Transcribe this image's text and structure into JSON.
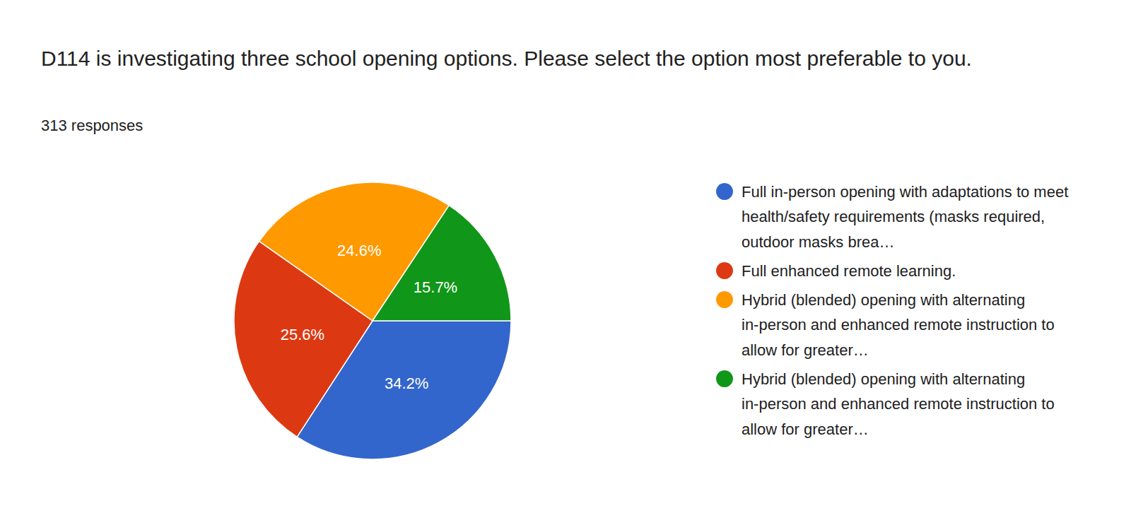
{
  "chart_data": {
    "type": "pie",
    "title": "D114 is investigating three school opening options. Please select the option most preferable to you.",
    "subtitle": "313 responses",
    "categories": [
      "Full in-person opening with adaptations to meet health/safety requirements (masks required, outdoor masks brea…",
      "Full enhanced remote learning.",
      "Hybrid (blended) opening with alternating in-person and enhanced remote instruction to allow for greater…",
      "Hybrid (blended) opening with alternating in-person and enhanced remote instruction to allow for greater…"
    ],
    "values": [
      34.2,
      25.6,
      24.6,
      15.7
    ],
    "value_labels": [
      "34.2%",
      "25.6%",
      "24.6%",
      "15.7%"
    ],
    "colors": [
      "#3366cc",
      "#dc3912",
      "#ff9900",
      "#109618"
    ],
    "data_labels": true,
    "legend": "right"
  }
}
